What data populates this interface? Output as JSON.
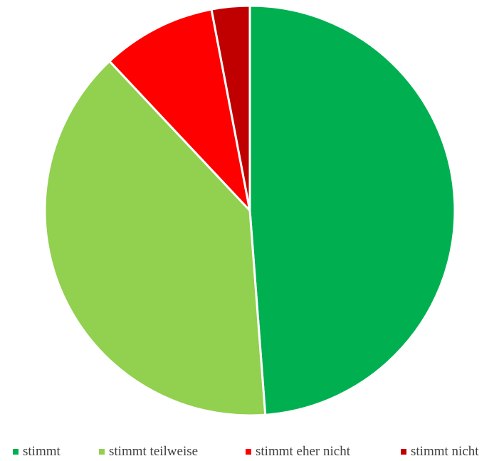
{
  "chart_data": {
    "type": "pie",
    "title": "",
    "categories": [
      "stimmt",
      "stimmt teilweise",
      "stimmt eher nicht",
      "stimmt nicht"
    ],
    "values": [
      48.8,
      39.2,
      9.0,
      3.0
    ],
    "colors": [
      "#00B050",
      "#92D050",
      "#FF0000",
      "#C00000"
    ],
    "start_angle_deg": 0,
    "direction": "clockwise",
    "legend_position": "bottom"
  },
  "legend": {
    "items": [
      {
        "label": "stimmt",
        "color": "#00B050"
      },
      {
        "label": "stimmt teilweise",
        "color": "#92D050"
      },
      {
        "label": "stimmt eher nicht",
        "color": "#FF0000"
      },
      {
        "label": "stimmt nicht",
        "color": "#C00000"
      }
    ]
  }
}
